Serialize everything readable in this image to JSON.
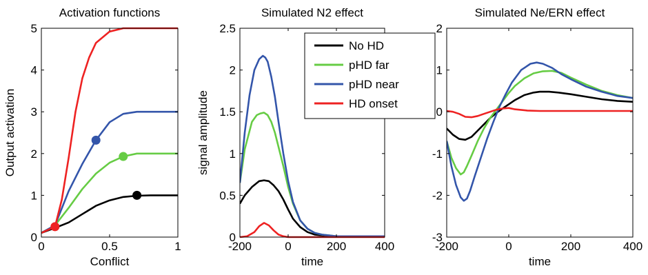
{
  "chart_data": [
    {
      "type": "line",
      "title": "Activation functions",
      "xlabel": "Conflict",
      "ylabel": "Output activation",
      "xlim": [
        0,
        1
      ],
      "ylim": [
        0,
        5
      ],
      "xticks": [
        0,
        0.5,
        1
      ],
      "yticks": [
        0,
        1,
        2,
        3,
        4,
        5
      ],
      "xtick_labels": [
        "0",
        "0.5",
        "1"
      ],
      "ytick_labels": [
        "0",
        "1",
        "2",
        "3",
        "4",
        "5"
      ],
      "grid": false,
      "series": [
        {
          "color": "#000000",
          "x": [
            0,
            0.1,
            0.2,
            0.3,
            0.4,
            0.5,
            0.6,
            0.7,
            0.8,
            0.9,
            1
          ],
          "y": [
            0.1,
            0.22,
            0.35,
            0.55,
            0.75,
            0.88,
            0.96,
            0.99,
            1,
            1,
            1
          ]
        },
        {
          "color": "#66cc44",
          "x": [
            0,
            0.1,
            0.2,
            0.3,
            0.4,
            0.5,
            0.6,
            0.7,
            0.8,
            0.9,
            1
          ],
          "y": [
            0.1,
            0.28,
            0.7,
            1.15,
            1.52,
            1.78,
            1.93,
            2.0,
            2.0,
            2.0,
            2.0
          ]
        },
        {
          "color": "#3355aa",
          "x": [
            0,
            0.1,
            0.2,
            0.3,
            0.4,
            0.5,
            0.6,
            0.7,
            0.8,
            0.9,
            1
          ],
          "y": [
            0.1,
            0.28,
            1.1,
            1.75,
            2.32,
            2.75,
            2.95,
            3.0,
            3.0,
            3.0,
            3.0
          ]
        },
        {
          "color": "#ee2222",
          "x": [
            0,
            0.1,
            0.15,
            0.2,
            0.25,
            0.3,
            0.35,
            0.4,
            0.5,
            0.6,
            0.7,
            0.8,
            0.9,
            1
          ],
          "y": [
            0.1,
            0.25,
            0.9,
            1.9,
            3.0,
            3.8,
            4.3,
            4.65,
            4.92,
            5.0,
            5.0,
            5.0,
            5.0,
            5.0
          ]
        }
      ],
      "markers": [
        {
          "x": 0.7,
          "y": 1.0,
          "color": "#000000"
        },
        {
          "x": 0.6,
          "y": 1.93,
          "color": "#66cc44"
        },
        {
          "x": 0.4,
          "y": 2.32,
          "color": "#3355aa"
        },
        {
          "x": 0.1,
          "y": 0.25,
          "color": "#ee2222"
        }
      ]
    },
    {
      "type": "line",
      "title": "Simulated N2 effect",
      "xlabel": "time",
      "ylabel": "signal amplitude",
      "xlim": [
        -200,
        400
      ],
      "ylim": [
        0,
        2.5
      ],
      "xticks": [
        -200,
        0,
        200,
        400
      ],
      "yticks": [
        0,
        0.5,
        1,
        1.5,
        2,
        2.5
      ],
      "xtick_labels": [
        "-200",
        "0",
        "200",
        "400"
      ],
      "ytick_labels": [
        "0",
        "0.5",
        "1",
        "1.5",
        "2",
        "2.5"
      ],
      "grid": false,
      "legend": {
        "position": "top-right",
        "entries": [
          "No HD",
          "pHD far",
          "pHD near",
          "HD onset"
        ]
      },
      "series": [
        {
          "name": "No HD",
          "color": "#000000",
          "x": [
            -200,
            -180,
            -150,
            -120,
            -100,
            -80,
            -60,
            -40,
            -20,
            0,
            20,
            50,
            80,
            110,
            140,
            170,
            200,
            230,
            300,
            400
          ],
          "y": [
            0.4,
            0.5,
            0.6,
            0.67,
            0.68,
            0.67,
            0.62,
            0.55,
            0.45,
            0.33,
            0.22,
            0.12,
            0.06,
            0.03,
            0.02,
            0.01,
            0.01,
            0.01,
            0.01,
            0.01
          ]
        },
        {
          "name": "pHD far",
          "color": "#66cc44",
          "x": [
            -200,
            -180,
            -150,
            -130,
            -115,
            -100,
            -85,
            -70,
            -55,
            -40,
            -20,
            0,
            20,
            50,
            80,
            110,
            140,
            170,
            200,
            230,
            300,
            400
          ],
          "y": [
            0.65,
            1.05,
            1.38,
            1.46,
            1.48,
            1.49,
            1.46,
            1.38,
            1.25,
            1.08,
            0.85,
            0.6,
            0.4,
            0.2,
            0.1,
            0.05,
            0.03,
            0.02,
            0.01,
            0.01,
            0.01,
            0.01
          ]
        },
        {
          "name": "pHD near",
          "color": "#3355aa",
          "x": [
            -200,
            -180,
            -160,
            -140,
            -120,
            -105,
            -95,
            -85,
            -70,
            -55,
            -40,
            -20,
            0,
            20,
            50,
            80,
            110,
            140,
            170,
            200,
            230,
            300,
            400
          ],
          "y": [
            0.65,
            1.25,
            1.7,
            2.0,
            2.13,
            2.17,
            2.15,
            2.1,
            1.92,
            1.68,
            1.38,
            1.0,
            0.67,
            0.42,
            0.2,
            0.1,
            0.05,
            0.03,
            0.02,
            0.01,
            0.01,
            0.01,
            0.01
          ]
        },
        {
          "name": "HD onset",
          "color": "#ee2222",
          "x": [
            -200,
            -170,
            -140,
            -120,
            -100,
            -80,
            -60,
            -40,
            -20,
            0,
            20,
            100,
            200,
            300,
            400
          ],
          "y": [
            0.0,
            0.01,
            0.06,
            0.13,
            0.17,
            0.14,
            0.08,
            0.03,
            0.01,
            0.0,
            0.0,
            0.0,
            0.0,
            0.0,
            0.0
          ]
        }
      ]
    },
    {
      "type": "line",
      "title": "Simulated Ne/ERN effect",
      "xlabel": "time",
      "ylabel": "",
      "xlim": [
        -200,
        400
      ],
      "ylim": [
        -3,
        2
      ],
      "xticks": [
        -200,
        0,
        200,
        400
      ],
      "yticks": [
        -3,
        -2,
        -1,
        0,
        1,
        2
      ],
      "xtick_labels": [
        "-200",
        "0",
        "200",
        "400"
      ],
      "ytick_labels": [
        "-3",
        "-2",
        "-1",
        "0",
        "1",
        "2"
      ],
      "grid": false,
      "series": [
        {
          "name": "No HD",
          "color": "#000000",
          "x": [
            -200,
            -180,
            -160,
            -140,
            -120,
            -100,
            -80,
            -60,
            -40,
            -20,
            0,
            20,
            50,
            80,
            100,
            130,
            160,
            200,
            250,
            300,
            350,
            400
          ],
          "y": [
            -0.4,
            -0.55,
            -0.65,
            -0.67,
            -0.6,
            -0.45,
            -0.3,
            -0.15,
            -0.03,
            0.08,
            0.18,
            0.28,
            0.4,
            0.46,
            0.48,
            0.48,
            0.46,
            0.42,
            0.36,
            0.3,
            0.26,
            0.24
          ]
        },
        {
          "name": "pHD far",
          "color": "#66cc44",
          "x": [
            -200,
            -185,
            -170,
            -155,
            -145,
            -135,
            -120,
            -100,
            -80,
            -60,
            -40,
            -20,
            0,
            20,
            50,
            80,
            110,
            140,
            170,
            200,
            250,
            300,
            350,
            400
          ],
          "y": [
            -0.7,
            -1.1,
            -1.35,
            -1.5,
            -1.45,
            -1.3,
            -1.05,
            -0.7,
            -0.4,
            -0.15,
            0.05,
            0.25,
            0.45,
            0.62,
            0.8,
            0.92,
            0.97,
            0.98,
            0.93,
            0.82,
            0.65,
            0.5,
            0.4,
            0.33
          ]
        },
        {
          "name": "pHD near",
          "color": "#3355aa",
          "x": [
            -200,
            -185,
            -170,
            -155,
            -145,
            -135,
            -125,
            -110,
            -90,
            -70,
            -50,
            -30,
            -10,
            10,
            40,
            70,
            90,
            110,
            140,
            170,
            200,
            250,
            300,
            350,
            400
          ],
          "y": [
            -0.7,
            -1.3,
            -1.75,
            -2.05,
            -2.13,
            -2.08,
            -1.9,
            -1.55,
            -1.1,
            -0.65,
            -0.25,
            0.12,
            0.42,
            0.7,
            1.0,
            1.15,
            1.18,
            1.15,
            1.05,
            0.9,
            0.78,
            0.6,
            0.48,
            0.38,
            0.33
          ]
        },
        {
          "name": "HD onset",
          "color": "#ee2222",
          "x": [
            -200,
            -180,
            -160,
            -140,
            -120,
            -100,
            -80,
            -60,
            -40,
            -20,
            0,
            20,
            60,
            100,
            200,
            300,
            400
          ],
          "y": [
            0.02,
            0.0,
            -0.05,
            -0.12,
            -0.13,
            -0.1,
            -0.05,
            0.0,
            0.05,
            0.08,
            0.09,
            0.06,
            0.03,
            0.02,
            0.02,
            0.02,
            0.02
          ]
        }
      ]
    }
  ]
}
